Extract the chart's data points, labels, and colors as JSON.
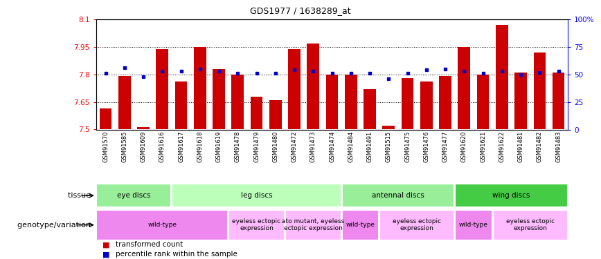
{
  "title": "GDS1977 / 1638289_at",
  "samples": [
    "GSM91570",
    "GSM91585",
    "GSM91609",
    "GSM91616",
    "GSM91617",
    "GSM91618",
    "GSM91619",
    "GSM91478",
    "GSM91479",
    "GSM91480",
    "GSM91472",
    "GSM91473",
    "GSM91474",
    "GSM91484",
    "GSM91491",
    "GSM91515",
    "GSM91475",
    "GSM91476",
    "GSM91477",
    "GSM91620",
    "GSM91621",
    "GSM91622",
    "GSM91481",
    "GSM91482",
    "GSM91483"
  ],
  "bar_values": [
    7.615,
    7.79,
    7.515,
    7.94,
    7.76,
    7.95,
    7.83,
    7.8,
    7.68,
    7.66,
    7.94,
    7.97,
    7.8,
    7.8,
    7.72,
    7.52,
    7.78,
    7.76,
    7.79,
    7.95,
    7.8,
    8.07,
    7.81,
    7.92,
    7.81
  ],
  "percentile_values": [
    51,
    56,
    48,
    53,
    53,
    55,
    53,
    51,
    51,
    51,
    54,
    53,
    51,
    51,
    51,
    46,
    51,
    54,
    55,
    53,
    51,
    53,
    50,
    52,
    53
  ],
  "ylim": [
    7.5,
    8.1
  ],
  "yticks": [
    7.5,
    7.65,
    7.8,
    7.95,
    8.1
  ],
  "ytick_labels": [
    "7.5",
    "7.65",
    "7.8",
    "7.95",
    "8.1"
  ],
  "right_yticks": [
    0,
    25,
    50,
    75,
    100
  ],
  "right_ytick_labels": [
    "0",
    "25",
    "50",
    "75",
    "100%"
  ],
  "bar_color": "#cc0000",
  "percentile_color": "#0000cc",
  "tissue_row": [
    {
      "label": "eye discs",
      "start": 0,
      "end": 4,
      "color": "#99ee99"
    },
    {
      "label": "leg discs",
      "start": 4,
      "end": 13,
      "color": "#bbffbb"
    },
    {
      "label": "antennal discs",
      "start": 13,
      "end": 19,
      "color": "#99ee99"
    },
    {
      "label": "wing discs",
      "start": 19,
      "end": 25,
      "color": "#44cc44"
    }
  ],
  "genotype_row": [
    {
      "label": "wild-type",
      "start": 0,
      "end": 7,
      "color": "#ee88ee"
    },
    {
      "label": "eyeless ectopic\nexpression",
      "start": 7,
      "end": 10,
      "color": "#ffbbff"
    },
    {
      "label": "ato mutant, eyeless\nectopic expression",
      "start": 10,
      "end": 13,
      "color": "#ffbbff"
    },
    {
      "label": "wild-type",
      "start": 13,
      "end": 15,
      "color": "#ee88ee"
    },
    {
      "label": "eyeless ectopic\nexpression",
      "start": 15,
      "end": 19,
      "color": "#ffbbff"
    },
    {
      "label": "wild-type",
      "start": 19,
      "end": 21,
      "color": "#ee88ee"
    },
    {
      "label": "eyeless ectopic\nexpression",
      "start": 21,
      "end": 25,
      "color": "#ffbbff"
    }
  ],
  "dotted_lines": [
    7.65,
    7.8,
    7.95
  ],
  "tissue_label": "tissue",
  "genotype_label": "genotype/variation",
  "xtick_bg_color": "#cccccc"
}
